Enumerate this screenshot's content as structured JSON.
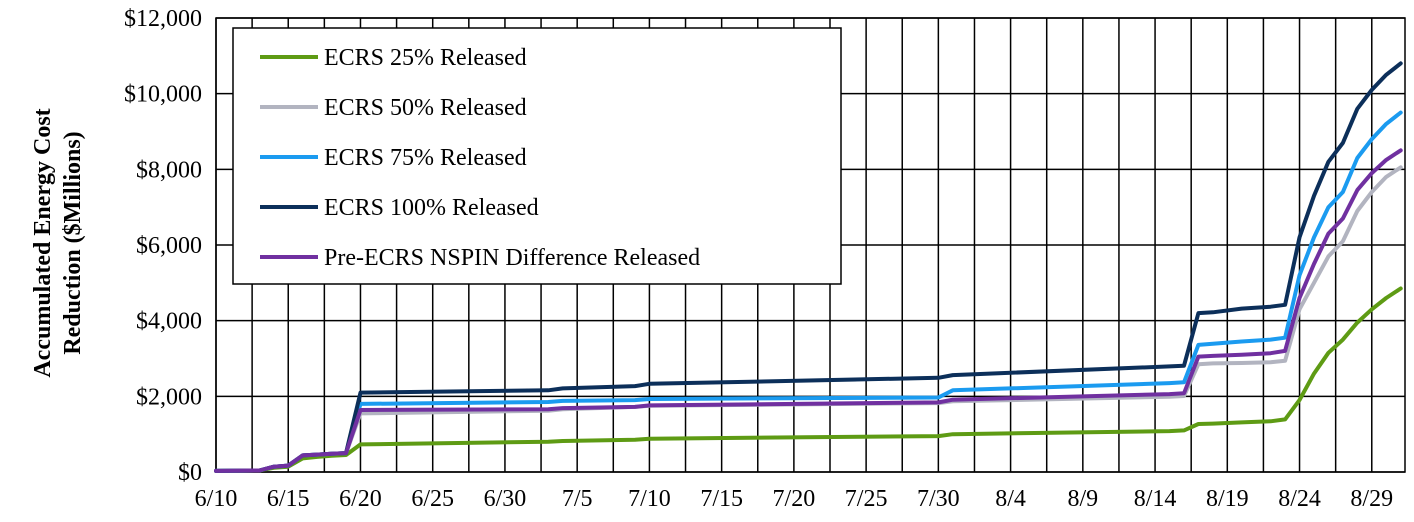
{
  "chart_data": {
    "type": "line",
    "title": "",
    "xlabel": "",
    "ylabel_line1": "Accumulated Energy Cost",
    "ylabel_line2": "Reduction ($Millions)",
    "x_ticks": [
      "6/10",
      "6/15",
      "6/20",
      "6/25",
      "6/30",
      "7/5",
      "7/10",
      "7/15",
      "7/20",
      "7/25",
      "7/30",
      "8/4",
      "8/9",
      "8/14",
      "8/19",
      "8/24",
      "8/29"
    ],
    "x_range": [
      "6/10",
      "8/31"
    ],
    "y_ticks": [
      "$0",
      "$2,000",
      "$4,000",
      "$6,000",
      "$8,000",
      "$10,000",
      "$12,000"
    ],
    "ylim": [
      0,
      12000
    ],
    "grid": true,
    "legend_position": "top-left",
    "x": [
      "6/10",
      "6/13",
      "6/14",
      "6/15",
      "6/16",
      "6/17",
      "6/18",
      "6/19",
      "6/20",
      "7/3",
      "7/4",
      "7/9",
      "7/10",
      "7/30",
      "7/31",
      "8/15",
      "8/16",
      "8/17",
      "8/18",
      "8/20",
      "8/22",
      "8/23",
      "8/24",
      "8/25",
      "8/26",
      "8/27",
      "8/28",
      "8/29",
      "8/30",
      "8/31"
    ],
    "series": [
      {
        "name": "ECRS 25% Released",
        "color": "#5e9b14",
        "values": [
          30,
          40,
          110,
          140,
          360,
          400,
          430,
          450,
          730,
          800,
          820,
          850,
          880,
          950,
          1000,
          1080,
          1100,
          1270,
          1280,
          1310,
          1340,
          1390,
          1900,
          2600,
          3150,
          3500,
          3950,
          4300,
          4600,
          4850
        ]
      },
      {
        "name": "ECRS 50% Released",
        "color": "#b2b4c0",
        "values": [
          30,
          40,
          140,
          170,
          440,
          460,
          480,
          500,
          1550,
          1620,
          1660,
          1720,
          1750,
          1820,
          1870,
          1990,
          2010,
          2850,
          2870,
          2880,
          2900,
          2940,
          4300,
          5000,
          5700,
          6100,
          6900,
          7400,
          7800,
          8050
        ]
      },
      {
        "name": "ECRS 75% Released",
        "color": "#1b9bf0",
        "values": [
          30,
          40,
          140,
          170,
          440,
          460,
          480,
          500,
          1800,
          1850,
          1880,
          1900,
          1930,
          1970,
          2160,
          2350,
          2370,
          3360,
          3390,
          3450,
          3500,
          3550,
          5200,
          6200,
          7000,
          7400,
          8300,
          8800,
          9200,
          9500
        ]
      },
      {
        "name": "ECRS 100% Released",
        "color": "#0c2f5a",
        "values": [
          30,
          40,
          140,
          170,
          440,
          460,
          480,
          500,
          2100,
          2160,
          2210,
          2270,
          2330,
          2490,
          2560,
          2790,
          2810,
          4200,
          4220,
          4320,
          4370,
          4420,
          6200,
          7300,
          8200,
          8700,
          9600,
          10100,
          10500,
          10800
        ]
      },
      {
        "name": "Pre-ECRS NSPIN Difference Released",
        "color": "#7030a0",
        "values": [
          30,
          40,
          140,
          170,
          440,
          460,
          480,
          500,
          1640,
          1660,
          1690,
          1720,
          1760,
          1840,
          1910,
          2060,
          2080,
          3050,
          3070,
          3100,
          3140,
          3200,
          4600,
          5500,
          6300,
          6700,
          7450,
          7900,
          8250,
          8500
        ]
      }
    ]
  }
}
